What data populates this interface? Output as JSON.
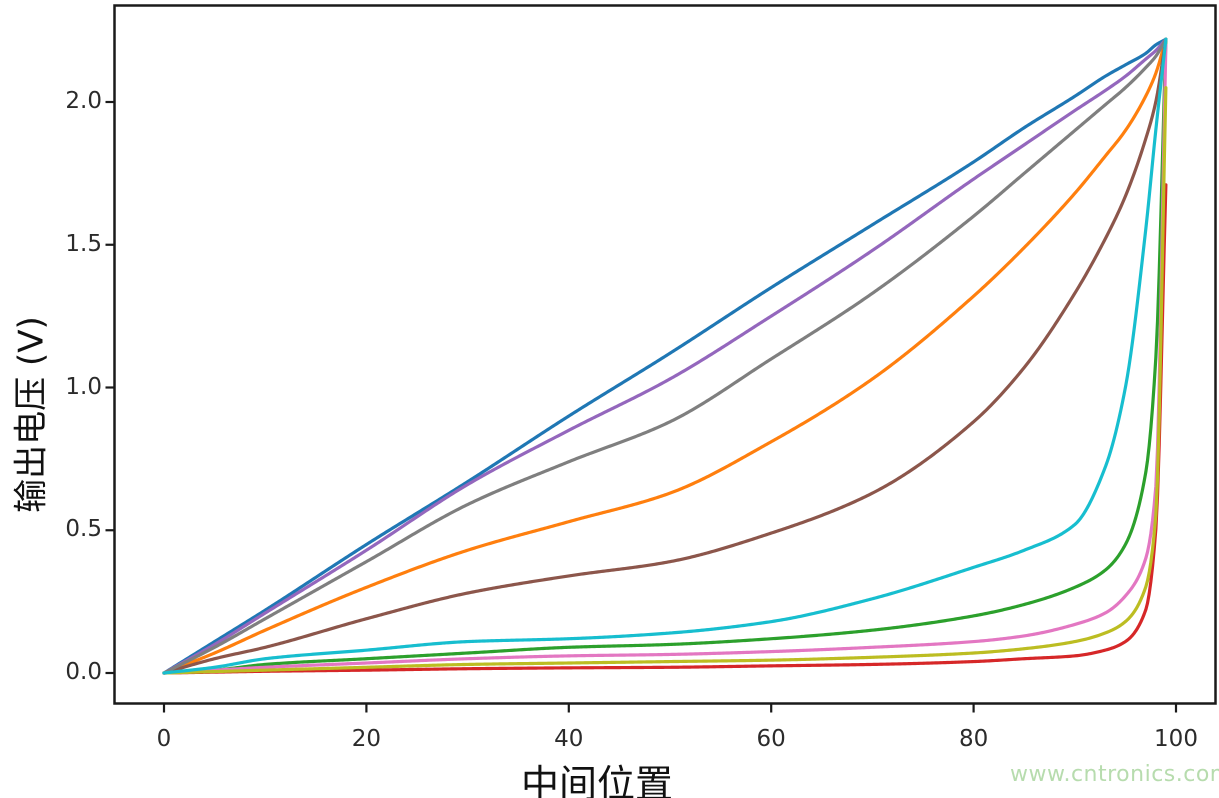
{
  "chart_data": {
    "type": "line",
    "title": "",
    "xlabel": "中间位置",
    "ylabel": "输出电压 (V)",
    "xlim": [
      -5,
      104
    ],
    "ylim": [
      -0.105,
      2.33
    ],
    "grid": false,
    "legend": "none",
    "xticks": [
      0,
      20,
      40,
      60,
      80,
      100
    ],
    "ytick_labels": [
      "0.0",
      "0.5",
      "1.0",
      "1.5",
      "2.0"
    ],
    "ytick_values": [
      0,
      0.5,
      1.0,
      1.5,
      2.0
    ],
    "x_samples": [
      0,
      5,
      10,
      20,
      30,
      40,
      50,
      60,
      70,
      80,
      85,
      90,
      93,
      95,
      97,
      98,
      99
    ],
    "series": [
      {
        "name": "curve-blue-linear",
        "color": "#1f77b4",
        "y": [
          0,
          0.11,
          0.22,
          0.45,
          0.67,
          0.9,
          1.12,
          1.35,
          1.57,
          1.79,
          1.91,
          2.02,
          2.09,
          2.13,
          2.17,
          2.2,
          2.22
        ]
      },
      {
        "name": "curve-orange",
        "color": "#ff7f0e",
        "y": [
          0,
          0.07,
          0.15,
          0.3,
          0.43,
          0.53,
          0.63,
          0.81,
          1.03,
          1.32,
          1.49,
          1.68,
          1.81,
          1.9,
          2.02,
          2.1,
          2.22
        ]
      },
      {
        "name": "curve-green",
        "color": "#2ca02c",
        "y": [
          0,
          0.01,
          0.03,
          0.05,
          0.07,
          0.09,
          0.1,
          0.12,
          0.15,
          0.2,
          0.24,
          0.3,
          0.36,
          0.45,
          0.7,
          1.1,
          2.22
        ]
      },
      {
        "name": "curve-red",
        "color": "#d62728",
        "y": [
          0,
          0.003,
          0.006,
          0.01,
          0.015,
          0.018,
          0.02,
          0.025,
          0.03,
          0.04,
          0.05,
          0.06,
          0.08,
          0.11,
          0.22,
          0.5,
          1.71
        ]
      },
      {
        "name": "curve-purple",
        "color": "#9467bd",
        "y": [
          0,
          0.1,
          0.21,
          0.43,
          0.66,
          0.85,
          1.03,
          1.25,
          1.48,
          1.73,
          1.85,
          1.97,
          2.04,
          2.09,
          2.15,
          2.18,
          2.22
        ]
      },
      {
        "name": "curve-brown",
        "color": "#8c564b",
        "y": [
          0,
          0.05,
          0.09,
          0.19,
          0.28,
          0.34,
          0.39,
          0.49,
          0.63,
          0.88,
          1.07,
          1.33,
          1.52,
          1.67,
          1.87,
          2.0,
          2.22
        ]
      },
      {
        "name": "curve-pink",
        "color": "#e377c2",
        "y": [
          0,
          0.01,
          0.02,
          0.035,
          0.05,
          0.06,
          0.065,
          0.075,
          0.09,
          0.11,
          0.13,
          0.17,
          0.21,
          0.27,
          0.4,
          0.65,
          2.2
        ]
      },
      {
        "name": "curve-gray",
        "color": "#7f7f7f",
        "y": [
          0,
          0.09,
          0.19,
          0.39,
          0.59,
          0.74,
          0.88,
          1.1,
          1.33,
          1.6,
          1.75,
          1.9,
          1.99,
          2.05,
          2.12,
          2.16,
          2.22
        ]
      },
      {
        "name": "curve-olive",
        "color": "#bcbd22",
        "y": [
          0,
          0.005,
          0.01,
          0.02,
          0.03,
          0.035,
          0.04,
          0.045,
          0.055,
          0.07,
          0.085,
          0.11,
          0.14,
          0.18,
          0.3,
          0.55,
          2.05
        ]
      },
      {
        "name": "curve-cyan",
        "color": "#17becf",
        "y": [
          0,
          0.02,
          0.05,
          0.08,
          0.11,
          0.12,
          0.14,
          0.18,
          0.26,
          0.37,
          0.43,
          0.52,
          0.72,
          1.0,
          1.55,
          1.9,
          2.22
        ]
      }
    ]
  },
  "watermark": {
    "text": "www.cntronics.com",
    "color": "#b7dcae"
  },
  "frame": {
    "spine_color": "#1a1a1a",
    "tick_color": "#1a1a1a"
  }
}
